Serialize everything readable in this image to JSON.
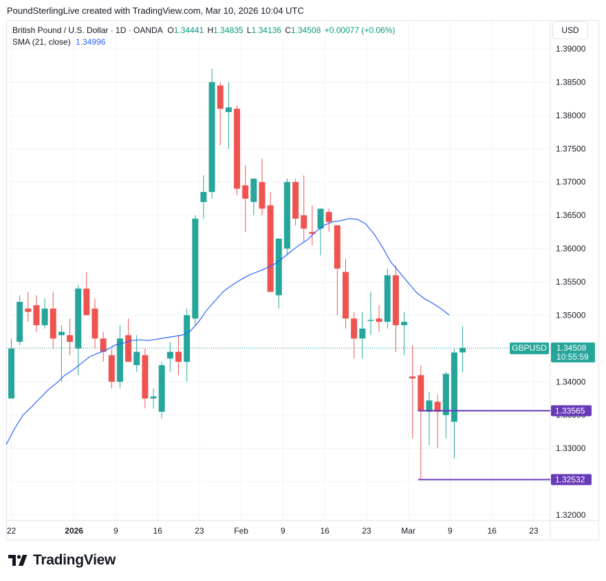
{
  "header": {
    "credit": "PoundSterlingLive created with TradingView.com, Mar 10, 2026 10:04 UTC"
  },
  "legend": {
    "symbol": "British Pound / U.S. Dollar · 1D · OANDA",
    "o_label": "O",
    "o_value": "1.34441",
    "h_label": "H",
    "h_value": "1.34835",
    "l_label": "L",
    "l_value": "1.34136",
    "c_label": "C",
    "c_value": "1.34508",
    "change": "+0.00077 (+0.06%)",
    "sma_label": "SMA (21, close)",
    "sma_value": "1.34996"
  },
  "currency_button": "USD",
  "colors": {
    "up": "#26a69a",
    "down": "#ef5350",
    "sma": "#2962ff",
    "level": "#673ab7",
    "grid": "#f0f3fa"
  },
  "chart_data": {
    "type": "candlestick",
    "title": "British Pound / U.S. Dollar · 1D · OANDA",
    "ylim": [
      1.3185,
      1.3925
    ],
    "y_ticks": [
      "1.39000",
      "1.38500",
      "1.38000",
      "1.37500",
      "1.37000",
      "1.36500",
      "1.36000",
      "1.35500",
      "1.35000",
      "1.34500",
      "1.34000",
      "1.33500",
      "1.33000",
      "1.32500",
      "1.32000"
    ],
    "x_ticks": [
      {
        "label": "22",
        "index": 0,
        "bold": false
      },
      {
        "label": "2026",
        "index": 7.5,
        "bold": true
      },
      {
        "label": "9",
        "index": 12.5,
        "bold": false
      },
      {
        "label": "16",
        "index": 17.5,
        "bold": false
      },
      {
        "label": "23",
        "index": 22.5,
        "bold": false
      },
      {
        "label": "Feb",
        "index": 27.5,
        "bold": false
      },
      {
        "label": "9",
        "index": 32.5,
        "bold": false
      },
      {
        "label": "16",
        "index": 37.5,
        "bold": false
      },
      {
        "label": "23",
        "index": 42.5,
        "bold": false
      },
      {
        "label": "Mar",
        "index": 47.5,
        "bold": false
      },
      {
        "label": "9",
        "index": 52.5,
        "bold": false
      },
      {
        "label": "16",
        "index": 57.5,
        "bold": false
      },
      {
        "label": "23",
        "index": 62.5,
        "bold": false
      }
    ],
    "candles": [
      {
        "o": 1.3375,
        "h": 1.3465,
        "l": 1.3375,
        "c": 1.345
      },
      {
        "o": 1.346,
        "h": 1.353,
        "l": 1.3455,
        "c": 1.352
      },
      {
        "o": 1.351,
        "h": 1.3535,
        "l": 1.349,
        "c": 1.3505
      },
      {
        "o": 1.3515,
        "h": 1.353,
        "l": 1.3475,
        "c": 1.3485
      },
      {
        "o": 1.3485,
        "h": 1.3525,
        "l": 1.348,
        "c": 1.351
      },
      {
        "o": 1.351,
        "h": 1.3535,
        "l": 1.345,
        "c": 1.3465
      },
      {
        "o": 1.347,
        "h": 1.3485,
        "l": 1.34,
        "c": 1.3475
      },
      {
        "o": 1.347,
        "h": 1.3495,
        "l": 1.344,
        "c": 1.346
      },
      {
        "o": 1.345,
        "h": 1.3545,
        "l": 1.341,
        "c": 1.354
      },
      {
        "o": 1.354,
        "h": 1.3565,
        "l": 1.35,
        "c": 1.35
      },
      {
        "o": 1.351,
        "h": 1.3525,
        "l": 1.345,
        "c": 1.3465
      },
      {
        "o": 1.3465,
        "h": 1.3475,
        "l": 1.343,
        "c": 1.3445
      },
      {
        "o": 1.344,
        "h": 1.345,
        "l": 1.339,
        "c": 1.34
      },
      {
        "o": 1.34,
        "h": 1.3485,
        "l": 1.339,
        "c": 1.3465
      },
      {
        "o": 1.347,
        "h": 1.3495,
        "l": 1.343,
        "c": 1.343
      },
      {
        "o": 1.3425,
        "h": 1.347,
        "l": 1.3415,
        "c": 1.3445
      },
      {
        "o": 1.344,
        "h": 1.345,
        "l": 1.336,
        "c": 1.3375
      },
      {
        "o": 1.3375,
        "h": 1.339,
        "l": 1.336,
        "c": 1.3378
      },
      {
        "o": 1.3355,
        "h": 1.343,
        "l": 1.3345,
        "c": 1.3425
      },
      {
        "o": 1.3435,
        "h": 1.346,
        "l": 1.3415,
        "c": 1.3445
      },
      {
        "o": 1.3445,
        "h": 1.347,
        "l": 1.341,
        "c": 1.343
      },
      {
        "o": 1.343,
        "h": 1.351,
        "l": 1.34,
        "c": 1.35
      },
      {
        "o": 1.3495,
        "h": 1.365,
        "l": 1.3485,
        "c": 1.3645
      },
      {
        "o": 1.367,
        "h": 1.371,
        "l": 1.3645,
        "c": 1.3685
      },
      {
        "o": 1.3685,
        "h": 1.387,
        "l": 1.3675,
        "c": 1.385
      },
      {
        "o": 1.3845,
        "h": 1.385,
        "l": 1.3755,
        "c": 1.381
      },
      {
        "o": 1.3805,
        "h": 1.385,
        "l": 1.375,
        "c": 1.3812
      },
      {
        "o": 1.381,
        "h": 1.3815,
        "l": 1.368,
        "c": 1.369
      },
      {
        "o": 1.3695,
        "h": 1.3725,
        "l": 1.3625,
        "c": 1.3675
      },
      {
        "o": 1.367,
        "h": 1.3705,
        "l": 1.365,
        "c": 1.3705
      },
      {
        "o": 1.37,
        "h": 1.3735,
        "l": 1.365,
        "c": 1.366
      },
      {
        "o": 1.3665,
        "h": 1.3685,
        "l": 1.3535,
        "c": 1.3535
      },
      {
        "o": 1.353,
        "h": 1.3615,
        "l": 1.351,
        "c": 1.3615
      },
      {
        "o": 1.36,
        "h": 1.3705,
        "l": 1.359,
        "c": 1.37
      },
      {
        "o": 1.37,
        "h": 1.3705,
        "l": 1.3635,
        "c": 1.3645
      },
      {
        "o": 1.365,
        "h": 1.371,
        "l": 1.361,
        "c": 1.363
      },
      {
        "o": 1.3625,
        "h": 1.3665,
        "l": 1.3605,
        "c": 1.3622
      },
      {
        "o": 1.363,
        "h": 1.366,
        "l": 1.359,
        "c": 1.366
      },
      {
        "o": 1.3655,
        "h": 1.366,
        "l": 1.3625,
        "c": 1.364
      },
      {
        "o": 1.3635,
        "h": 1.3635,
        "l": 1.35,
        "c": 1.357
      },
      {
        "o": 1.3565,
        "h": 1.3585,
        "l": 1.348,
        "c": 1.3495
      },
      {
        "o": 1.3495,
        "h": 1.3505,
        "l": 1.3435,
        "c": 1.3465
      },
      {
        "o": 1.3465,
        "h": 1.3505,
        "l": 1.3435,
        "c": 1.348
      },
      {
        "o": 1.3492,
        "h": 1.3535,
        "l": 1.347,
        "c": 1.3493
      },
      {
        "o": 1.3495,
        "h": 1.3515,
        "l": 1.3475,
        "c": 1.349
      },
      {
        "o": 1.349,
        "h": 1.357,
        "l": 1.348,
        "c": 1.356
      },
      {
        "o": 1.356,
        "h": 1.3575,
        "l": 1.3445,
        "c": 1.3485
      },
      {
        "o": 1.3485,
        "h": 1.3505,
        "l": 1.344,
        "c": 1.349
      },
      {
        "o": 1.3408,
        "h": 1.3455,
        "l": 1.3315,
        "c": 1.3405
      },
      {
        "o": 1.341,
        "h": 1.3425,
        "l": 1.3253,
        "c": 1.3356
      },
      {
        "o": 1.3355,
        "h": 1.3385,
        "l": 1.3305,
        "c": 1.3372
      },
      {
        "o": 1.337,
        "h": 1.338,
        "l": 1.33,
        "c": 1.3355
      },
      {
        "o": 1.335,
        "h": 1.3415,
        "l": 1.3315,
        "c": 1.3412
      },
      {
        "o": 1.334,
        "h": 1.345,
        "l": 1.3285,
        "c": 1.3444
      },
      {
        "o": 1.34441,
        "h": 1.34835,
        "l": 1.34136,
        "c": 1.34508
      }
    ],
    "sma": {
      "name": "SMA (21, close)",
      "start_x_index": -0.6,
      "values": [
        1.3306,
        1.333,
        1.335,
        1.3362,
        1.3375,
        1.3388,
        1.3398,
        1.341,
        1.3418,
        1.3428,
        1.3438,
        1.3443,
        1.3448,
        1.3455,
        1.3458,
        1.3462,
        1.3463,
        1.3462,
        1.3464,
        1.3466,
        1.3468,
        1.347,
        1.3476,
        1.349,
        1.3508,
        1.3522,
        1.3536,
        1.3545,
        1.3553,
        1.356,
        1.3565,
        1.357,
        1.3576,
        1.3585,
        1.3595,
        1.3605,
        1.3613,
        1.3625,
        1.3635,
        1.364,
        1.3642,
        1.3645,
        1.3644,
        1.3637,
        1.3622,
        1.3602,
        1.358,
        1.3565,
        1.355,
        1.3535,
        1.3525,
        1.3518,
        1.351,
        1.35
      ]
    },
    "current_price": {
      "label": "GBPUSD",
      "value": "1.34508",
      "countdown": "10:55:59",
      "price": 1.34508
    },
    "levels": [
      {
        "value": 1.33565,
        "label": "1.33565",
        "from_index": 49
      },
      {
        "value": 1.32532,
        "label": "1.32532",
        "from_index": 49
      }
    ]
  },
  "footer": {
    "brand": "TradingView"
  }
}
